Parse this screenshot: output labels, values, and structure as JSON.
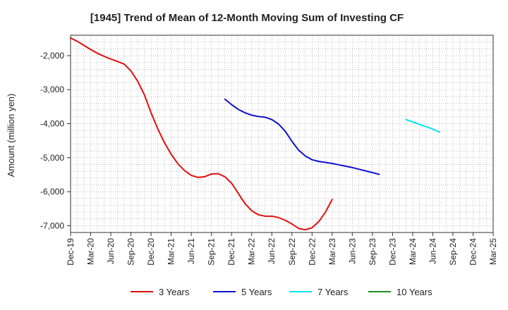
{
  "chart_data": {
    "type": "line",
    "title": "[1945]  Trend of Mean of 12-Month Moving Sum of Investing CF",
    "xlabel": "",
    "ylabel": "Amount (million yen)",
    "ylim": [
      -7200,
      -1400
    ],
    "y_ticks": [
      -7000,
      -6000,
      -5000,
      -4000,
      -3000,
      -2000
    ],
    "y_tick_labels": [
      "-7,000",
      "-6,000",
      "-5,000",
      "-4,000",
      "-3,000",
      "-2,000"
    ],
    "x_ticks": [
      "Dec-19",
      "Mar-20",
      "Jun-20",
      "Sep-20",
      "Dec-20",
      "Mar-21",
      "Jun-21",
      "Sep-21",
      "Dec-21",
      "Mar-22",
      "Jun-22",
      "Sep-22",
      "Dec-22",
      "Mar-23",
      "Jun-23",
      "Sep-23",
      "Dec-23",
      "Mar-24",
      "Jun-24",
      "Sep-24",
      "Dec-24",
      "Mar-25"
    ],
    "grid": true,
    "legend_position": "bottom",
    "series": [
      {
        "name": "3 Years",
        "color": "#e01010",
        "start_index": 0,
        "values": [
          -1480,
          -1580,
          -1700,
          -1820,
          -1930,
          -2020,
          -2100,
          -2170,
          -2250,
          -2450,
          -2750,
          -3150,
          -3680,
          -4150,
          -4560,
          -4900,
          -5180,
          -5380,
          -5520,
          -5580,
          -5560,
          -5480,
          -5470,
          -5560,
          -5750,
          -6050,
          -6350,
          -6560,
          -6680,
          -6720,
          -6720,
          -6760,
          -6840,
          -6950,
          -7080,
          -7120,
          -7060,
          -6880,
          -6600,
          -6230
        ]
      },
      {
        "name": "5 Years",
        "color": "#1010c8",
        "start_index": 23,
        "values": [
          -3280,
          -3440,
          -3580,
          -3680,
          -3750,
          -3790,
          -3810,
          -3880,
          -4010,
          -4220,
          -4520,
          -4780,
          -4950,
          -5060,
          -5110,
          -5140,
          -5170,
          -5210,
          -5250,
          -5290,
          -5340,
          -5390,
          -5440,
          -5490
        ]
      },
      {
        "name": "7 Years",
        "color": "#00e5ee",
        "start_index": 50,
        "values": [
          -3880,
          -3950,
          -4020,
          -4090,
          -4160,
          -4250
        ]
      },
      {
        "name": "10 Years",
        "color": "#1e8c1e",
        "start_index": 0,
        "values": []
      }
    ]
  }
}
